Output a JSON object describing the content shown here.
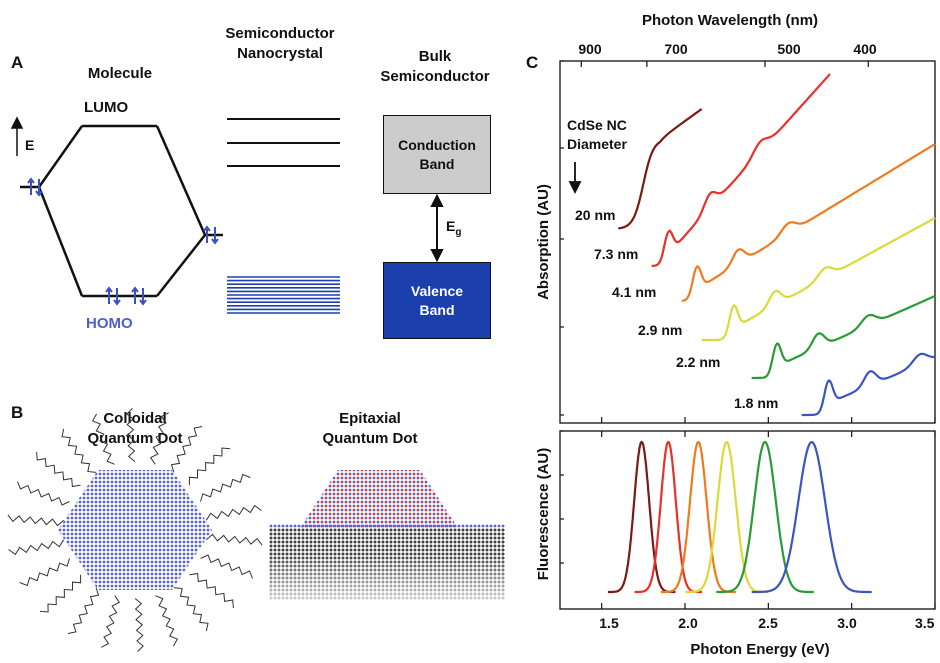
{
  "panels": {
    "a": "A",
    "b": "B",
    "c": "C"
  },
  "panel_a": {
    "molecule": "Molecule",
    "lumo": "LUMO",
    "homo": "HOMO",
    "energy_axis": "E",
    "nanocrystal": [
      "Semiconductor",
      "Nanocrystal"
    ],
    "bulk": [
      "Bulk",
      "Semiconductor"
    ],
    "conduction_band": [
      "Conduction",
      "Band"
    ],
    "valence_band": [
      "Valence",
      "Band"
    ],
    "gap_label": "E",
    "gap_subscript": "g",
    "colors": {
      "electron": "#3b4fbf",
      "valence_fill": "#1c3fae",
      "conduction_fill": "#cccccc",
      "homo_text": "#4b5fd0"
    }
  },
  "panel_b": {
    "colloidal": [
      "Colloidal",
      "Quantum Dot"
    ],
    "epitaxial": [
      "Epitaxial",
      "Quantum Dot"
    ]
  },
  "panel_c": {
    "top_axis_label": "Photon Wavelength (nm)",
    "top_ticks": [
      "900",
      "700",
      "500",
      "400"
    ],
    "absorption_label": "Absorption (AU)",
    "fluorescence_label": "Fluorescence (AU)",
    "x_axis_label": "Photon Energy (eV)",
    "x_ticks": [
      "1.5",
      "2.0",
      "2.5",
      "3.0",
      "3.5"
    ],
    "legend_title": [
      "CdSe NC",
      "Diameter"
    ]
  },
  "chart_data": {
    "type": "line",
    "title": "",
    "xlabel": "Photon Energy (eV)",
    "ylabel_top": "Absorption (AU)",
    "ylabel_bottom": "Fluorescence (AU)",
    "top_xlabel": "Photon Wavelength (nm)",
    "xlim": [
      1.25,
      3.5
    ],
    "x_ticks": [
      1.5,
      2.0,
      2.5,
      3.0,
      3.5
    ],
    "wavelength_ticks_nm": [
      900,
      700,
      500,
      400
    ],
    "series": [
      {
        "name": "20 nm",
        "color": "#7a1a12",
        "abs_onset_eV": 1.75,
        "abs_start_eV": 1.6,
        "abs_end_eV": 2.1,
        "fl_peak_eV": 1.74,
        "fl_width_eV": 0.045
      },
      {
        "name": "7.3 nm",
        "color": "#e8312a",
        "abs_onset_eV": 1.9,
        "abs_start_eV": 1.8,
        "abs_end_eV": 2.87,
        "fl_peak_eV": 1.9,
        "fl_width_eV": 0.045
      },
      {
        "name": "4.1 nm",
        "color": "#f07b1e",
        "abs_onset_eV": 2.07,
        "abs_start_eV": 1.98,
        "abs_end_eV": 3.5,
        "fl_peak_eV": 2.08,
        "fl_width_eV": 0.05
      },
      {
        "name": "2.9 nm",
        "color": "#dada3a",
        "abs_onset_eV": 2.29,
        "abs_start_eV": 2.1,
        "abs_end_eV": 3.5,
        "fl_peak_eV": 2.25,
        "fl_width_eV": 0.055
      },
      {
        "name": "2.2 nm",
        "color": "#2a9a35",
        "abs_onset_eV": 2.55,
        "abs_start_eV": 2.4,
        "abs_end_eV": 3.5,
        "fl_peak_eV": 2.48,
        "fl_width_eV": 0.065
      },
      {
        "name": "1.8 nm",
        "color": "#3b55c0",
        "abs_onset_eV": 2.86,
        "abs_start_eV": 2.7,
        "abs_end_eV": 3.5,
        "fl_peak_eV": 2.76,
        "fl_width_eV": 0.08
      }
    ]
  }
}
